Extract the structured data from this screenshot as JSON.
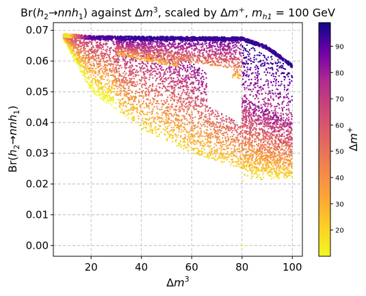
{
  "chart_data": {
    "type": "scatter",
    "title_parts": {
      "prefix": "Br(",
      "h2": "h",
      "h2_sub": "2",
      "arrow": "→",
      "nnh": "nnh",
      "h1_sub": "1",
      "against": ") against Δ",
      "m3_base": "m",
      "m3_sup": "3",
      "scaled": ", scaled by Δ",
      "mplus_base": "m",
      "mplus_sup": "+",
      "comma": ", ",
      "mh1_base": "m",
      "mh1_sub": "h1",
      "mass": " = 100 GeV"
    },
    "xlabel": {
      "delta": "Δ",
      "base": "m",
      "sup": "3"
    },
    "ylabel": {
      "prefix": "Br(",
      "h": "h",
      "sub2": "2",
      "arrow": "→",
      "nnh": "nnh",
      "sub1": "1",
      "close": ")"
    },
    "colorbar_label": {
      "delta": "Δ",
      "base": "m",
      "sup": "+"
    },
    "xlim": [
      5,
      104
    ],
    "ylim": [
      -0.0035,
      0.0725
    ],
    "x_ticks": [
      20,
      40,
      60,
      80,
      100
    ],
    "x_tick_labels": [
      "20",
      "40",
      "60",
      "80",
      "100"
    ],
    "y_ticks": [
      0.0,
      0.01,
      0.02,
      0.03,
      0.04,
      0.05,
      0.06,
      0.07
    ],
    "y_tick_labels": [
      "0.00",
      "0.01",
      "0.02",
      "0.03",
      "0.04",
      "0.05",
      "0.06",
      "0.07"
    ],
    "colorbar_range": [
      10,
      99
    ],
    "colorbar_ticks": [
      20,
      30,
      40,
      50,
      60,
      70,
      80,
      90
    ],
    "colorbar_tick_labels": [
      "20",
      "30",
      "40",
      "50",
      "60",
      "70",
      "80",
      "90"
    ],
    "colormap": "plasma_r",
    "grid": true,
    "grid_style": "dashed",
    "point_color_low": "#f0f921",
    "point_color_high": "#0d0887",
    "upper_band": [
      {
        "x": 9,
        "y": 0.069,
        "c": 12
      },
      {
        "x": 20,
        "y": 0.0682,
        "c": 90
      },
      {
        "x": 40,
        "y": 0.068,
        "c": 95
      },
      {
        "x": 60,
        "y": 0.0679,
        "c": 95
      },
      {
        "x": 80,
        "y": 0.0678,
        "c": 95
      },
      {
        "x": 90,
        "y": 0.065,
        "c": 95
      },
      {
        "x": 100,
        "y": 0.059,
        "c": 95
      }
    ],
    "main_region_boundary": [
      {
        "x": 9,
        "y_top": 0.0685,
        "y_bottom": 0.067
      },
      {
        "x": 20,
        "y_top": 0.068,
        "y_bottom": 0.05
      },
      {
        "x": 40,
        "y_top": 0.065,
        "y_bottom": 0.038
      },
      {
        "x": 60,
        "y_top": 0.0595,
        "y_bottom": 0.03
      },
      {
        "x": 80,
        "y_top": 0.048,
        "y_bottom": 0.025
      },
      {
        "x": 100,
        "y_top": 0.04,
        "y_bottom": 0.022
      }
    ],
    "isolated_points": [
      {
        "x": 80,
        "y": 0.0,
        "c": 12
      }
    ]
  }
}
